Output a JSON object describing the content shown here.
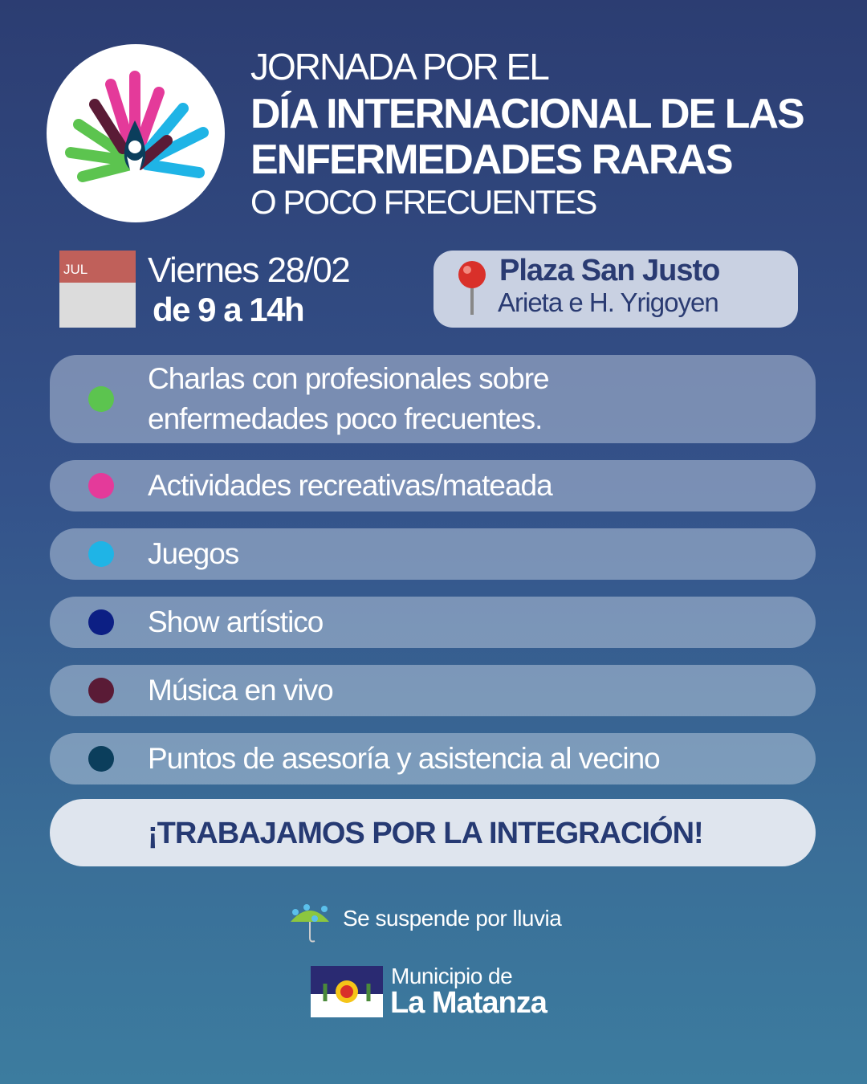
{
  "header": {
    "line1": "JORNADA POR EL",
    "line2": "DÍA INTERNACIONAL DE LAS",
    "line3": "ENFERMEDADES RARAS",
    "line4": "O POCO FRECUENTES"
  },
  "date": {
    "calendar_month": "JUL",
    "day": "Viernes 28/02",
    "hours": "de 9 a 14h"
  },
  "location": {
    "name": "Plaza San Justo",
    "address": "Arieta e H. Yrigoyen"
  },
  "activities": [
    {
      "label": "Charlas con profesionales sobre enfermedades poco frecuentes.",
      "color": "#5cc44f"
    },
    {
      "label": "Actividades recreativas/mateada",
      "color": "#e43a9a"
    },
    {
      "label": "Juegos",
      "color": "#1fb4e6"
    },
    {
      "label": "Show artístico",
      "color": "#0c1f84"
    },
    {
      "label": "Música en vivo",
      "color": "#5a1b36"
    },
    {
      "label": "Puntos de asesoría y asistencia al vecino",
      "color": "#0b3e5c"
    }
  ],
  "banner": "¡TRABAJAMOS POR LA INTEGRACIÓN!",
  "rain_notice": "Se suspende por lluvia",
  "footer": {
    "line1": "Municipio de",
    "line2": "La Matanza"
  }
}
